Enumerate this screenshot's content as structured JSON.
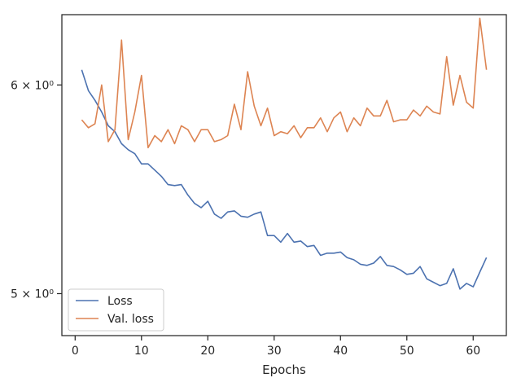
{
  "chart_data": {
    "type": "line",
    "title": "",
    "xlabel": "Epochs",
    "ylabel": "",
    "yscale": "log",
    "xlim": [
      -2,
      65
    ],
    "ylim": [
      4.82,
      6.38
    ],
    "xticks": [
      0,
      10,
      20,
      30,
      40,
      50,
      60
    ],
    "yticks": [
      {
        "value": 5,
        "label": "5 × 10⁰"
      },
      {
        "value": 6,
        "label": "6 × 10⁰"
      }
    ],
    "grid": false,
    "legend_position": "lower-left",
    "x": [
      1,
      2,
      3,
      4,
      5,
      6,
      7,
      8,
      9,
      10,
      11,
      12,
      13,
      14,
      15,
      16,
      17,
      18,
      19,
      20,
      21,
      22,
      23,
      24,
      25,
      26,
      27,
      28,
      29,
      30,
      31,
      32,
      33,
      34,
      35,
      36,
      37,
      38,
      39,
      40,
      41,
      42,
      43,
      44,
      45,
      46,
      47,
      48,
      49,
      50,
      51,
      52,
      53,
      54,
      55,
      56,
      57,
      58,
      59,
      60,
      61,
      62
    ],
    "series": [
      {
        "name": "Loss",
        "color": "#4c72b0",
        "values": [
          6.08,
          5.97,
          5.92,
          5.86,
          5.79,
          5.76,
          5.7,
          5.67,
          5.65,
          5.6,
          5.6,
          5.57,
          5.54,
          5.5,
          5.495,
          5.5,
          5.45,
          5.41,
          5.39,
          5.42,
          5.36,
          5.34,
          5.37,
          5.375,
          5.35,
          5.345,
          5.36,
          5.37,
          5.26,
          5.26,
          5.23,
          5.27,
          5.23,
          5.235,
          5.21,
          5.215,
          5.17,
          5.18,
          5.18,
          5.185,
          5.16,
          5.15,
          5.13,
          5.125,
          5.135,
          5.165,
          5.125,
          5.12,
          5.105,
          5.085,
          5.09,
          5.12,
          5.065,
          5.05,
          5.035,
          5.045,
          5.11,
          5.02,
          5.045,
          5.03,
          5.095,
          5.16
        ]
      },
      {
        "name": "Val. loss",
        "color": "#dd8452",
        "values": [
          5.82,
          5.78,
          5.8,
          6.0,
          5.71,
          5.77,
          6.24,
          5.72,
          5.86,
          6.05,
          5.68,
          5.74,
          5.71,
          5.77,
          5.7,
          5.79,
          5.77,
          5.71,
          5.77,
          5.77,
          5.71,
          5.72,
          5.74,
          5.9,
          5.77,
          6.07,
          5.89,
          5.79,
          5.88,
          5.74,
          5.76,
          5.75,
          5.79,
          5.73,
          5.78,
          5.78,
          5.83,
          5.76,
          5.83,
          5.86,
          5.76,
          5.83,
          5.79,
          5.88,
          5.84,
          5.84,
          5.92,
          5.81,
          5.82,
          5.82,
          5.87,
          5.84,
          5.89,
          5.86,
          5.85,
          6.15,
          5.895,
          6.05,
          5.91,
          5.88,
          6.36,
          6.08
        ]
      }
    ]
  }
}
